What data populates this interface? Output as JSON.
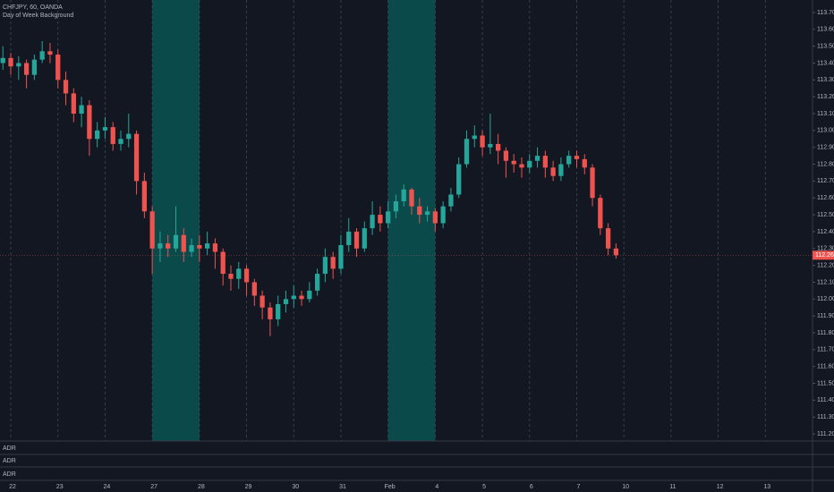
{
  "chart_data": {
    "type": "candlestick",
    "title": "CHFJPY, 60, OANDA",
    "subtitle": "Day of Week Background",
    "indicator_panes": [
      "ADR",
      "ADR",
      "ADR"
    ],
    "last_price_label": "112.260",
    "up_color": "#26a69a",
    "down_color": "#ef5350",
    "band_color": "#0b4a4b",
    "background_bands": [
      [
        24,
        30
      ],
      [
        54,
        60
      ]
    ],
    "x": [
      5,
      6,
      7,
      8,
      9,
      10,
      11,
      12,
      13,
      14,
      15,
      16,
      17,
      18,
      19,
      20,
      21,
      22,
      23,
      24,
      25,
      26,
      27,
      28,
      29,
      30,
      31,
      32,
      33,
      34,
      35,
      36,
      37,
      38,
      39,
      40,
      41,
      42,
      43,
      44,
      45,
      46,
      47,
      48,
      49,
      50,
      51,
      52,
      53,
      54,
      55,
      56,
      57,
      58,
      59,
      60,
      61,
      62,
      63,
      64,
      65,
      66,
      67,
      68,
      69,
      70,
      71,
      72,
      73,
      74,
      75,
      76,
      77,
      78,
      79,
      80,
      81,
      82,
      83
    ],
    "open": [
      113.4,
      113.43,
      113.38,
      113.4,
      113.33,
      113.42,
      113.47,
      113.45,
      113.3,
      113.22,
      113.1,
      113.15,
      112.95,
      113.0,
      113.02,
      112.92,
      112.95,
      112.98,
      112.7,
      112.52,
      112.3,
      112.33,
      112.3,
      112.38,
      112.28,
      112.32,
      112.3,
      112.33,
      112.28,
      112.15,
      112.12,
      112.18,
      112.1,
      112.02,
      111.95,
      111.88,
      111.97,
      112.0,
      112.02,
      112.0,
      112.05,
      112.15,
      112.25,
      112.18,
      112.32,
      112.4,
      112.3,
      112.42,
      112.5,
      112.45,
      112.52,
      112.58,
      112.65,
      112.55,
      112.5,
      112.52,
      112.45,
      112.55,
      112.62,
      112.8,
      112.95,
      112.97,
      112.9,
      112.92,
      112.88,
      112.82,
      112.8,
      112.78,
      112.82,
      112.85,
      112.78,
      112.73,
      112.8,
      112.85,
      112.83,
      112.78,
      112.6,
      112.42,
      112.3
    ],
    "high": [
      113.5,
      113.46,
      113.44,
      113.42,
      113.45,
      113.53,
      113.52,
      113.48,
      113.35,
      113.25,
      113.2,
      113.18,
      113.05,
      113.08,
      113.05,
      113.0,
      113.1,
      113.0,
      112.75,
      112.55,
      112.4,
      112.38,
      112.55,
      112.42,
      112.36,
      112.38,
      112.4,
      112.36,
      112.3,
      112.2,
      112.22,
      112.2,
      112.12,
      112.05,
      111.98,
      112.02,
      112.05,
      112.08,
      112.05,
      112.1,
      112.18,
      112.3,
      112.28,
      112.38,
      112.48,
      112.42,
      112.46,
      112.58,
      112.55,
      112.58,
      112.62,
      112.68,
      112.66,
      112.6,
      112.55,
      112.54,
      112.58,
      112.66,
      112.84,
      113.0,
      113.03,
      113.0,
      113.1,
      112.98,
      112.9,
      112.86,
      112.84,
      112.86,
      112.9,
      112.88,
      112.82,
      112.84,
      112.88,
      112.88,
      112.86,
      112.8,
      112.62,
      112.45,
      112.33
    ],
    "low": [
      113.36,
      113.33,
      113.3,
      113.25,
      113.3,
      113.4,
      113.4,
      113.25,
      113.15,
      113.05,
      113.02,
      112.85,
      112.9,
      112.95,
      112.88,
      112.88,
      112.9,
      112.62,
      112.48,
      112.15,
      112.22,
      112.25,
      112.28,
      112.22,
      112.25,
      112.22,
      112.26,
      112.18,
      112.08,
      112.05,
      112.06,
      112.02,
      111.96,
      111.88,
      111.78,
      111.84,
      111.92,
      111.95,
      111.96,
      111.98,
      112.02,
      112.1,
      112.12,
      112.15,
      112.28,
      112.25,
      112.28,
      112.38,
      112.4,
      112.42,
      112.48,
      112.55,
      112.5,
      112.45,
      112.46,
      112.4,
      112.42,
      112.52,
      112.6,
      112.78,
      112.9,
      112.85,
      112.86,
      112.8,
      112.72,
      112.75,
      112.72,
      112.75,
      112.78,
      112.72,
      112.7,
      112.7,
      112.78,
      112.78,
      112.74,
      112.55,
      112.38,
      112.26,
      112.24
    ],
    "close": [
      113.43,
      113.38,
      113.4,
      113.33,
      113.42,
      113.47,
      113.45,
      113.3,
      113.22,
      113.1,
      113.15,
      112.95,
      113.0,
      113.02,
      112.92,
      112.95,
      112.98,
      112.7,
      112.52,
      112.3,
      112.33,
      112.3,
      112.38,
      112.28,
      112.32,
      112.3,
      112.33,
      112.28,
      112.15,
      112.12,
      112.18,
      112.1,
      112.02,
      111.95,
      111.88,
      111.97,
      112.0,
      112.02,
      112.0,
      112.05,
      112.15,
      112.25,
      112.18,
      112.32,
      112.4,
      112.3,
      112.42,
      112.5,
      112.45,
      112.52,
      112.58,
      112.65,
      112.55,
      112.5,
      112.52,
      112.45,
      112.55,
      112.62,
      112.8,
      112.95,
      112.97,
      112.9,
      112.92,
      112.88,
      112.82,
      112.8,
      112.78,
      112.82,
      112.85,
      112.78,
      112.73,
      112.8,
      112.85,
      112.83,
      112.78,
      112.6,
      112.42,
      112.3,
      112.26
    ],
    "xlim": [
      4.63,
      108
    ],
    "xticks": [
      {
        "value": 6,
        "label": "22"
      },
      {
        "value": 12,
        "label": "23"
      },
      {
        "value": 18,
        "label": "24"
      },
      {
        "value": 24,
        "label": "27"
      },
      {
        "value": 30,
        "label": "28"
      },
      {
        "value": 36,
        "label": "29"
      },
      {
        "value": 42,
        "label": "30"
      },
      {
        "value": 48,
        "label": "31"
      },
      {
        "value": 54,
        "label": "Feb"
      },
      {
        "value": 60,
        "label": "4"
      },
      {
        "value": 66,
        "label": "5"
      },
      {
        "value": 72,
        "label": "6"
      },
      {
        "value": 78,
        "label": "7"
      },
      {
        "value": 84,
        "label": "10"
      },
      {
        "value": 90,
        "label": "11"
      },
      {
        "value": 96,
        "label": "12"
      },
      {
        "value": 102,
        "label": "13"
      }
    ],
    "ylim": [
      111.158,
      113.774
    ],
    "yticks": [
      {
        "value": 111.2,
        "label": "111.200"
      },
      {
        "value": 111.3,
        "label": "111.300"
      },
      {
        "value": 111.4,
        "label": "111.400"
      },
      {
        "value": 111.5,
        "label": "111.500"
      },
      {
        "value": 111.6,
        "label": "111.600"
      },
      {
        "value": 111.7,
        "label": "111.700"
      },
      {
        "value": 111.8,
        "label": "111.800"
      },
      {
        "value": 111.9,
        "label": "111.900"
      },
      {
        "value": 112.0,
        "label": "112.000"
      },
      {
        "value": 112.1,
        "label": "112.100"
      },
      {
        "value": 112.2,
        "label": "112.200"
      },
      {
        "value": 112.3,
        "label": "112.300"
      },
      {
        "value": 112.4,
        "label": "112.400"
      },
      {
        "value": 112.5,
        "label": "112.500"
      },
      {
        "value": 112.6,
        "label": "112.600"
      },
      {
        "value": 112.7,
        "label": "112.700"
      },
      {
        "value": 112.8,
        "label": "112.800"
      },
      {
        "value": 112.9,
        "label": "112.900"
      },
      {
        "value": 113.0,
        "label": "113.000"
      },
      {
        "value": 113.1,
        "label": "113.100"
      },
      {
        "value": 113.2,
        "label": "113.200"
      },
      {
        "value": 113.3,
        "label": "113.300"
      },
      {
        "value": 113.4,
        "label": "113.400"
      },
      {
        "value": 113.5,
        "label": "113.500"
      },
      {
        "value": 113.6,
        "label": "113.600"
      },
      {
        "value": 113.7,
        "label": "113.700"
      }
    ],
    "grid": true
  }
}
